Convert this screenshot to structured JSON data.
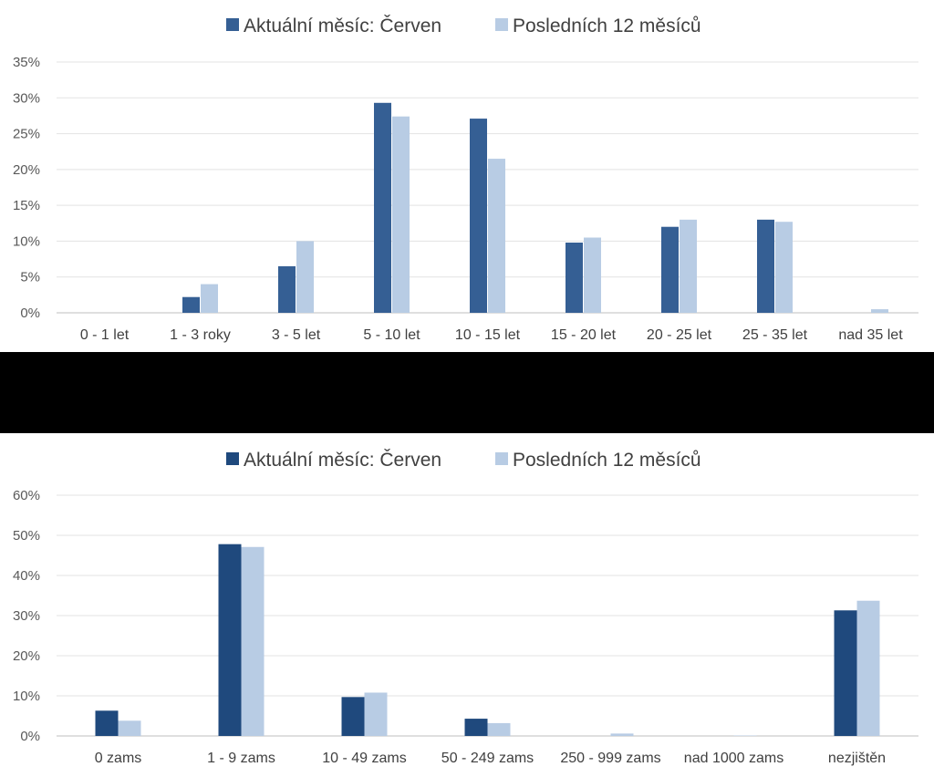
{
  "chart_data": [
    {
      "type": "bar",
      "legend_position": "top",
      "grid": true,
      "series": [
        {
          "name": "Aktuální měsíc: Červen",
          "color": "#355f94",
          "values": [
            0,
            2.2,
            6.5,
            29.3,
            27.1,
            9.8,
            12.0,
            13.0,
            0
          ]
        },
        {
          "name": "Posledních 12 měsíců",
          "color": "#b8cce4",
          "values": [
            0,
            4.0,
            10.0,
            27.4,
            21.5,
            10.5,
            13.0,
            12.7,
            0.5
          ]
        }
      ],
      "categories": [
        "0 - 1 let",
        "1 - 3 roky",
        "3 - 5 let",
        "5 - 10 let",
        "10 - 15 let",
        "15 - 20 let",
        "20 - 25 let",
        "25 - 35 let",
        "nad 35 let"
      ],
      "ylim": [
        0,
        35
      ],
      "yticks": [
        "0%",
        "5%",
        "10%",
        "15%",
        "20%",
        "25%",
        "30%",
        "35%"
      ]
    },
    {
      "type": "bar",
      "legend_position": "top",
      "grid": true,
      "series": [
        {
          "name": "Aktuální měsíc: Červen",
          "color": "#1f497d",
          "values": [
            6.3,
            47.8,
            9.7,
            4.3,
            0,
            0,
            31.3
          ]
        },
        {
          "name": "Posledních 12 měsíců",
          "color": "#b8cce4",
          "values": [
            3.8,
            47.1,
            10.8,
            3.2,
            0.6,
            0.1,
            33.7
          ]
        }
      ],
      "categories": [
        "0 zams",
        "1 - 9 zams",
        "10 - 49 zams",
        "50 - 249 zams",
        "250 - 999 zams",
        "nad 1000 zams",
        "nezjištěn"
      ],
      "ylim": [
        0,
        60
      ],
      "yticks": [
        "0%",
        "10%",
        "20%",
        "30%",
        "40%",
        "50%",
        "60%"
      ]
    }
  ]
}
